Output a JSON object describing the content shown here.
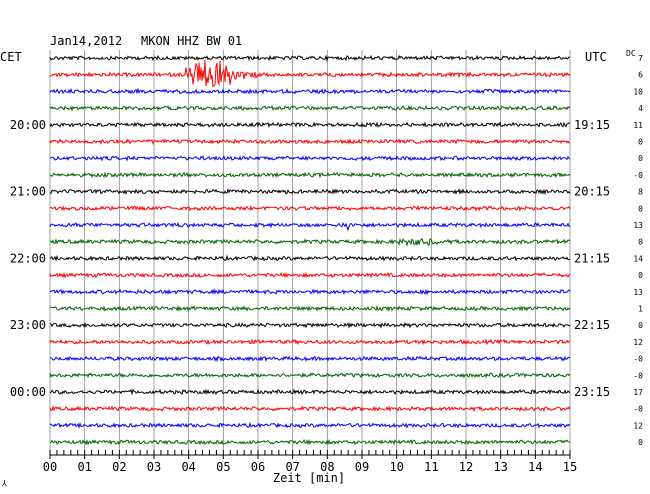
{
  "header": {
    "date": "Jan14,2012",
    "station": "MKON HHZ BW 01",
    "left_tz": "CET",
    "right_tz": "UTC",
    "dc_label": "DC"
  },
  "corner_mark": "⅄",
  "colors": {
    "cycle": [
      "#000000",
      "#ff0000",
      "#0000ff",
      "#006400"
    ],
    "grid": "#888888"
  },
  "chart_data": {
    "type": "line",
    "title": "Jan14,2012  MKON HHZ BW 01",
    "xlabel": "Zeit [min]",
    "ylabel": "",
    "xlim": [
      0,
      15
    ],
    "x_ticks": [
      "00",
      "01",
      "02",
      "03",
      "04",
      "05",
      "06",
      "07",
      "08",
      "09",
      "10",
      "11",
      "12",
      "13",
      "14",
      "15"
    ],
    "minor_ticks_per_minute": 5,
    "trace_count": 24,
    "trace_minutes": 15,
    "cet_labels": [
      {
        "trace": 4,
        "label": "20:00"
      },
      {
        "trace": 8,
        "label": "21:00"
      },
      {
        "trace": 12,
        "label": "22:00"
      },
      {
        "trace": 16,
        "label": "23:00"
      },
      {
        "trace": 20,
        "label": "00:00"
      }
    ],
    "utc_labels": [
      {
        "trace": 4,
        "label": "19:15"
      },
      {
        "trace": 8,
        "label": "20:15"
      },
      {
        "trace": 12,
        "label": "21:15"
      },
      {
        "trace": 16,
        "label": "22:15"
      },
      {
        "trace": 20,
        "label": "23:15"
      }
    ],
    "dc_offsets": [
      "7",
      "6",
      "10",
      "4",
      "11",
      "0",
      "0",
      "-0",
      "8",
      "0",
      "13",
      "0",
      "14",
      "0",
      "13",
      "1",
      "0",
      "12",
      "-0",
      "-0",
      "17",
      "-0",
      "12",
      "0"
    ],
    "events": [
      {
        "trace": 1,
        "start_min": 3.9,
        "peak_min": 4.75,
        "end_min": 6.2,
        "amplitude": 1.0,
        "label": "earthquake"
      },
      {
        "trace": 10,
        "start_min": 8.55,
        "peak_min": 8.6,
        "end_min": 8.75,
        "amplitude": 0.35,
        "label": "spike"
      },
      {
        "trace": 11,
        "start_min": 10.0,
        "peak_min": 10.9,
        "end_min": 11.5,
        "amplitude": 0.15,
        "label": "noise burst"
      }
    ],
    "grid": true
  }
}
